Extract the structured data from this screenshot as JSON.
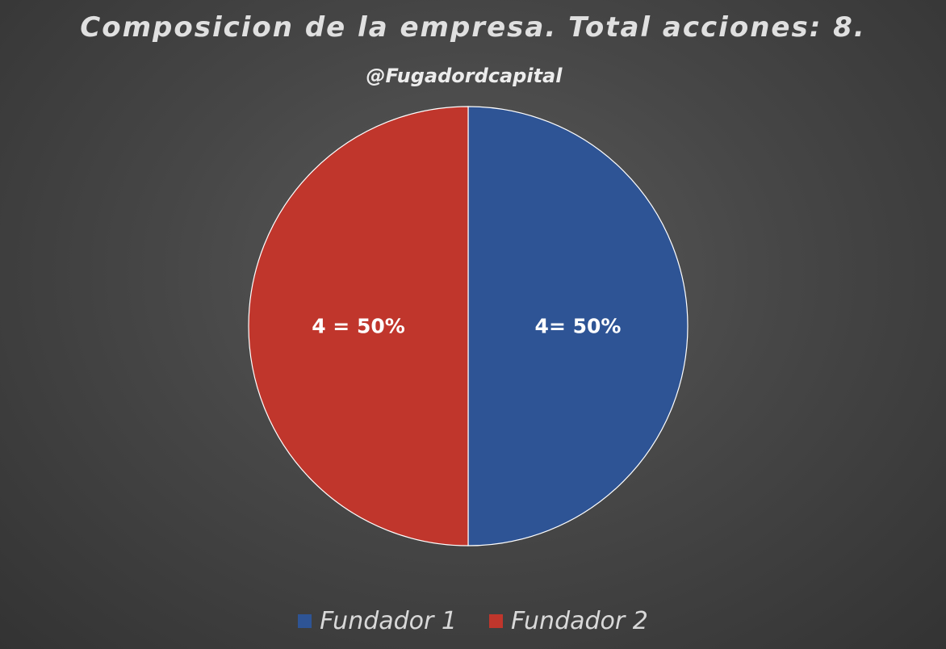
{
  "chart_data": {
    "type": "pie",
    "title": "Composicion de la empresa. Total acciones: 8.",
    "subtitle": "@Fugadordcapital",
    "slices": [
      {
        "name": "Fundador 1",
        "value": 4,
        "label": "4= 50%",
        "color": "#2e5495"
      },
      {
        "name": "Fundador 2",
        "value": 4,
        "label": "4 = 50%",
        "color": "#c0362c"
      }
    ],
    "legend_position": "bottom",
    "background": "#474747"
  }
}
